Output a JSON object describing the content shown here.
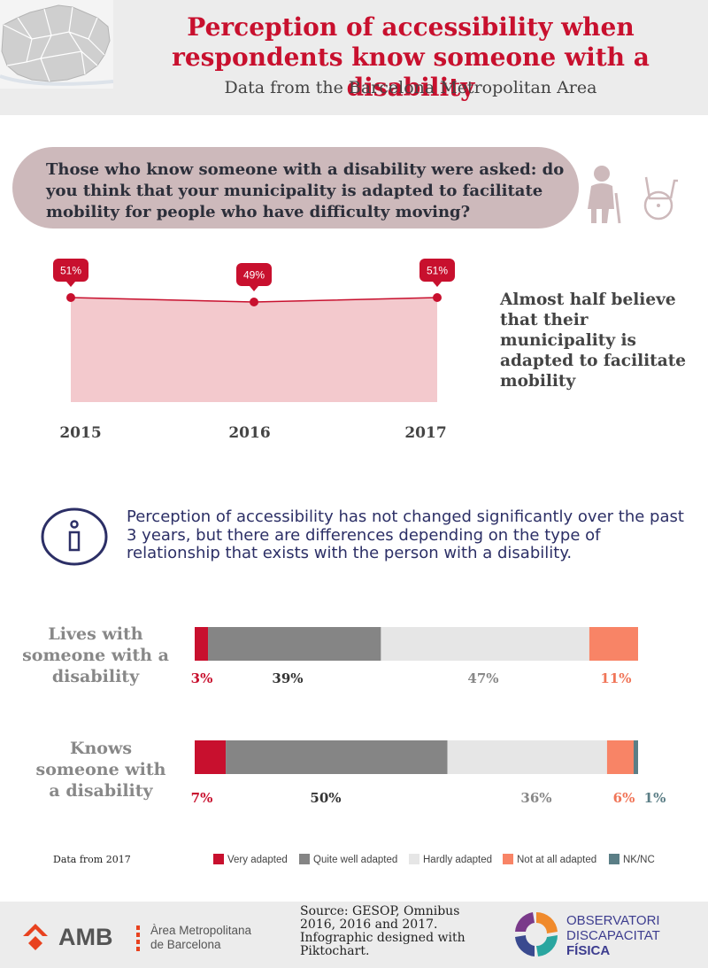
{
  "header": {
    "title": "Perception of accessibility when respondents know someone with a disability",
    "subtitle": "Data from the Barcelona Metropolitan Area"
  },
  "question": "Those who know someone with a disability were asked: do you think that your municipality is adapted to facilitate mobility for people who have difficulty moving?",
  "icons": [
    "elderly-person-icon",
    "wheelchair-icon",
    "info-icon"
  ],
  "side_text": "Almost half believe that their municipality is adapted to facilitate mobility",
  "info_text": "Perception of accessibility has not changed significantly over the past 3 years, but there are differences depending on the type of relationship that exists with the person with a disability.",
  "legend_note": "Data from 2017",
  "footer": {
    "amb_abbr": "AMB",
    "amb_name_line1": "Àrea Metropolitana",
    "amb_name_line2": "de Barcelona",
    "source": "Source:  GESOP, Omnibus 2016, 2016 and 2017. Infographic designed with Piktochart.",
    "obs_line1": "OBSERVATORI",
    "obs_line2": "DISCAPACITAT",
    "obs_line3": "FÍSICA"
  },
  "chart_data": [
    {
      "type": "area",
      "categories": [
        "2015",
        "2016",
        "2017"
      ],
      "values": [
        51,
        49,
        51
      ],
      "labels": [
        "51%",
        "49%",
        "51%"
      ],
      "color": "#c8102e",
      "fill": "#f3c9cd"
    },
    {
      "type": "bar",
      "orientation": "horizontal-stacked",
      "categories": [
        "Lives with someone with a disability",
        "Knows someone with a disability"
      ],
      "series": [
        {
          "name": "Very adapted",
          "color": "#c8102e",
          "values": [
            3,
            7
          ],
          "labels": [
            "3%",
            "7%"
          ]
        },
        {
          "name": "Quite well adapted",
          "color": "#858585",
          "values": [
            39,
            50
          ],
          "labels": [
            "39%",
            "50%"
          ]
        },
        {
          "name": "Hardly adapted",
          "color": "#e6e6e6",
          "values": [
            47,
            36
          ],
          "labels": [
            "47%",
            "36%"
          ]
        },
        {
          "name": "Not at all adapted",
          "color": "#f88466",
          "values": [
            11,
            6
          ],
          "labels": [
            "11%",
            "6%"
          ]
        },
        {
          "name": "NK/NC",
          "color": "#5b7e86",
          "values": [
            0,
            1
          ],
          "labels": [
            "",
            "1%"
          ]
        }
      ],
      "label_colors": [
        "#c8102e",
        "#333333",
        "#888888",
        "#f07558",
        "#5b7e86"
      ]
    }
  ]
}
